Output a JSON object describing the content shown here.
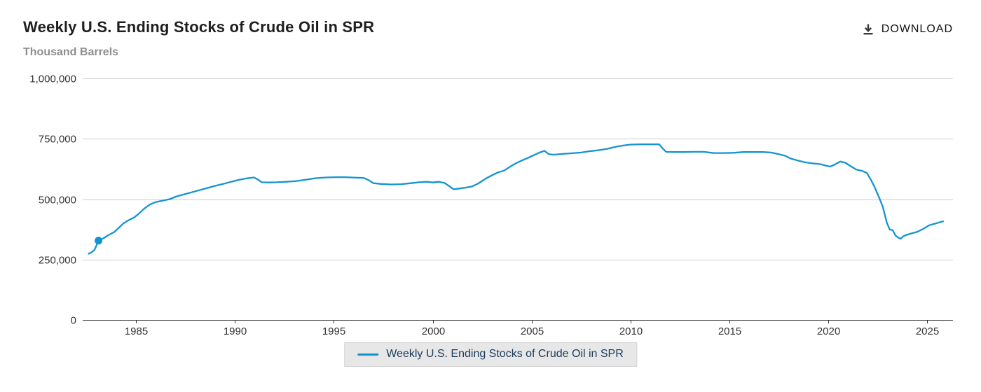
{
  "header": {
    "title": "Weekly U.S. Ending Stocks of Crude Oil in SPR",
    "subtitle": "Thousand Barrels",
    "download_label": "DOWNLOAD"
  },
  "legend": {
    "label": "Weekly U.S. Ending Stocks of Crude Oil in SPR"
  },
  "colors": {
    "line": "#1493d1",
    "grid": "#cccccc",
    "axis": "#333333",
    "tick_text": "#333333",
    "legend_bg": "#e7e7e7",
    "legend_text": "#1b3a5c",
    "title": "#1f1f1f",
    "subtitle": "#8e8e8e",
    "download_icon": "#3a3a3a"
  },
  "chart_data": {
    "type": "line",
    "title": "Weekly U.S. Ending Stocks of Crude Oil in SPR",
    "xlabel": "",
    "ylabel": "Thousand Barrels",
    "xlim": [
      1982.3,
      2026.3
    ],
    "ylim": [
      0,
      1000000
    ],
    "grid": "horizontal",
    "legend_position": "bottom-center",
    "yticks": [
      0,
      250000,
      500000,
      750000,
      1000000
    ],
    "ytick_labels": [
      "0",
      "250,000",
      "500,000",
      "750,000",
      "1,000,000"
    ],
    "xticks": [
      1985,
      1990,
      1995,
      2000,
      2005,
      2010,
      2015,
      2020,
      2025
    ],
    "xtick_labels": [
      "1985",
      "1990",
      "1995",
      "2000",
      "2005",
      "2010",
      "2015",
      "2020",
      "2025"
    ],
    "marker_point": {
      "x": 1983.1,
      "y": 328000
    },
    "series": [
      {
        "name": "Weekly U.S. Ending Stocks of Crude Oil in SPR",
        "color": "#1493d1",
        "points": [
          [
            1982.6,
            274000
          ],
          [
            1982.75,
            280000
          ],
          [
            1982.9,
            290000
          ],
          [
            1983.1,
            328000
          ],
          [
            1983.35,
            338000
          ],
          [
            1983.6,
            351000
          ],
          [
            1983.9,
            364000
          ],
          [
            1984.1,
            379000
          ],
          [
            1984.35,
            399000
          ],
          [
            1984.6,
            412000
          ],
          [
            1984.9,
            424000
          ],
          [
            1985.1,
            437000
          ],
          [
            1985.4,
            460000
          ],
          [
            1985.7,
            478000
          ],
          [
            1986.0,
            488000
          ],
          [
            1986.3,
            493000
          ],
          [
            1986.7,
            500000
          ],
          [
            1987.0,
            510000
          ],
          [
            1987.4,
            519000
          ],
          [
            1987.8,
            528000
          ],
          [
            1988.2,
            537000
          ],
          [
            1988.6,
            546000
          ],
          [
            1989.0,
            555000
          ],
          [
            1989.4,
            563000
          ],
          [
            1989.8,
            572000
          ],
          [
            1990.2,
            580000
          ],
          [
            1990.6,
            586000
          ],
          [
            1990.95,
            590000
          ],
          [
            1991.15,
            582000
          ],
          [
            1991.35,
            570000
          ],
          [
            1991.7,
            569000
          ],
          [
            1992.1,
            570000
          ],
          [
            1992.6,
            572000
          ],
          [
            1993.1,
            575000
          ],
          [
            1993.6,
            581000
          ],
          [
            1994.1,
            587000
          ],
          [
            1994.6,
            590000
          ],
          [
            1995.1,
            591000
          ],
          [
            1995.6,
            591000
          ],
          [
            1996.1,
            589000
          ],
          [
            1996.5,
            588000
          ],
          [
            1996.75,
            579000
          ],
          [
            1997.0,
            566000
          ],
          [
            1997.4,
            563000
          ],
          [
            1997.9,
            561000
          ],
          [
            1998.4,
            562000
          ],
          [
            1998.9,
            566000
          ],
          [
            1999.3,
            570000
          ],
          [
            1999.7,
            572000
          ],
          [
            2000.0,
            569000
          ],
          [
            2000.3,
            572000
          ],
          [
            2000.6,
            567000
          ],
          [
            2000.85,
            553000
          ],
          [
            2001.05,
            541000
          ],
          [
            2001.35,
            544000
          ],
          [
            2001.7,
            548000
          ],
          [
            2002.0,
            553000
          ],
          [
            2002.3,
            565000
          ],
          [
            2002.7,
            586000
          ],
          [
            2003.0,
            599000
          ],
          [
            2003.3,
            611000
          ],
          [
            2003.6,
            618000
          ],
          [
            2003.9,
            634000
          ],
          [
            2004.2,
            648000
          ],
          [
            2004.5,
            660000
          ],
          [
            2004.8,
            670000
          ],
          [
            2005.1,
            682000
          ],
          [
            2005.4,
            693000
          ],
          [
            2005.65,
            700000
          ],
          [
            2005.85,
            687000
          ],
          [
            2006.1,
            684000
          ],
          [
            2006.5,
            687000
          ],
          [
            2007.0,
            690000
          ],
          [
            2007.5,
            693000
          ],
          [
            2008.0,
            699000
          ],
          [
            2008.4,
            703000
          ],
          [
            2008.8,
            708000
          ],
          [
            2009.1,
            714000
          ],
          [
            2009.4,
            719000
          ],
          [
            2009.7,
            723000
          ],
          [
            2010.0,
            726000
          ],
          [
            2010.5,
            727000
          ],
          [
            2011.0,
            727000
          ],
          [
            2011.45,
            727000
          ],
          [
            2011.6,
            712000
          ],
          [
            2011.8,
            696000
          ],
          [
            2012.2,
            695000
          ],
          [
            2012.7,
            695000
          ],
          [
            2013.2,
            696000
          ],
          [
            2013.7,
            696000
          ],
          [
            2014.2,
            691000
          ],
          [
            2014.7,
            691000
          ],
          [
            2015.2,
            692000
          ],
          [
            2015.7,
            695000
          ],
          [
            2016.2,
            695000
          ],
          [
            2016.7,
            695000
          ],
          [
            2017.1,
            693000
          ],
          [
            2017.45,
            687000
          ],
          [
            2017.8,
            680000
          ],
          [
            2018.1,
            668000
          ],
          [
            2018.45,
            660000
          ],
          [
            2018.8,
            653000
          ],
          [
            2019.2,
            648000
          ],
          [
            2019.6,
            645000
          ],
          [
            2019.9,
            638000
          ],
          [
            2020.1,
            635000
          ],
          [
            2020.35,
            644000
          ],
          [
            2020.6,
            656000
          ],
          [
            2020.85,
            651000
          ],
          [
            2021.1,
            638000
          ],
          [
            2021.4,
            623000
          ],
          [
            2021.7,
            617000
          ],
          [
            2021.95,
            608000
          ],
          [
            2022.15,
            580000
          ],
          [
            2022.35,
            548000
          ],
          [
            2022.55,
            510000
          ],
          [
            2022.75,
            469000
          ],
          [
            2022.95,
            405000
          ],
          [
            2023.1,
            374000
          ],
          [
            2023.25,
            372000
          ],
          [
            2023.4,
            349000
          ],
          [
            2023.55,
            340000
          ],
          [
            2023.65,
            336000
          ],
          [
            2023.8,
            347000
          ],
          [
            2023.95,
            352000
          ],
          [
            2024.2,
            358000
          ],
          [
            2024.5,
            365000
          ],
          [
            2024.8,
            377000
          ],
          [
            2025.1,
            392000
          ],
          [
            2025.45,
            400000
          ],
          [
            2025.8,
            408000
          ]
        ]
      }
    ]
  }
}
